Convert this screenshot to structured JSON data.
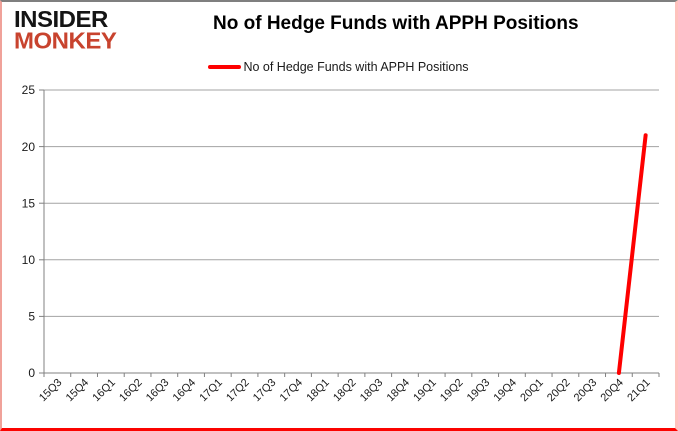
{
  "header": {
    "logo_line1": "INSIDER",
    "logo_line2": "MONKEY",
    "title": "No of Hedge Funds with APPH Positions"
  },
  "legend": {
    "label": "No of Hedge Funds with APPH Positions"
  },
  "colors": {
    "series_red": "#fe0000",
    "logo_black": "#141414",
    "logo_red": "#c8432e",
    "gridline": "#a3a3a3",
    "axis": "#808080",
    "tick_text": "#1a1a1a",
    "frame_border_bottom": "#fb0300",
    "frame_border_top": "#7f7f7f"
  },
  "chart_data": {
    "type": "line",
    "title": "No of Hedge Funds with APPH Positions",
    "categories": [
      "15Q3",
      "15Q4",
      "16Q1",
      "16Q2",
      "16Q3",
      "16Q4",
      "17Q1",
      "17Q2",
      "17Q3",
      "17Q4",
      "18Q1",
      "18Q2",
      "18Q3",
      "18Q4",
      "19Q1",
      "19Q2",
      "19Q3",
      "19Q4",
      "20Q1",
      "20Q2",
      "20Q3",
      "20Q4",
      "21Q1"
    ],
    "series": [
      {
        "name": "No of Hedge Funds with APPH Positions",
        "color": "#fe0000",
        "values": [
          null,
          null,
          null,
          null,
          null,
          null,
          null,
          null,
          null,
          null,
          null,
          null,
          null,
          null,
          null,
          null,
          null,
          null,
          null,
          null,
          null,
          0,
          21
        ]
      }
    ],
    "xlabel": "",
    "ylabel": "",
    "ylim": [
      0,
      25
    ],
    "yticks": [
      0,
      5,
      10,
      15,
      20,
      25
    ],
    "grid": true,
    "legend_position": "top"
  }
}
